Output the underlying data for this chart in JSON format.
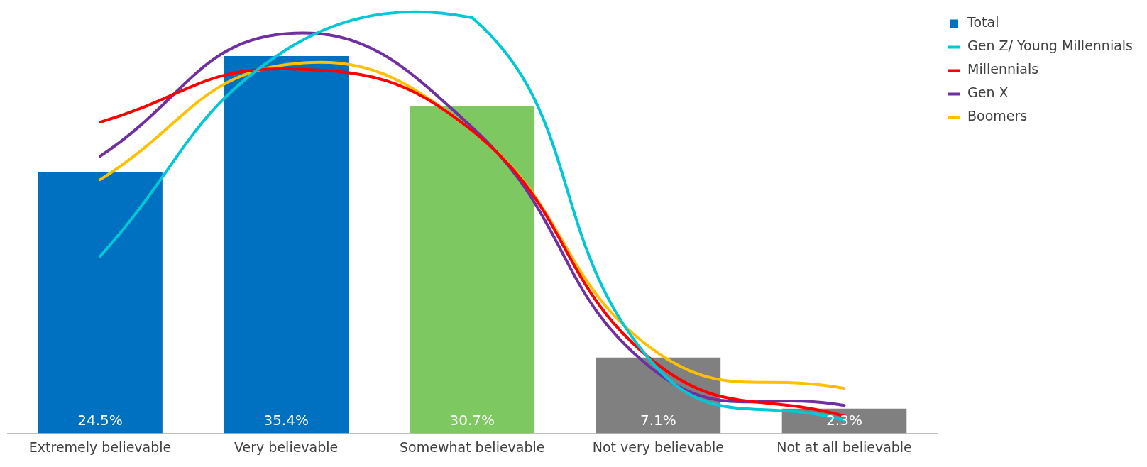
{
  "chart_data": {
    "type": "bar",
    "categories": [
      "Extremely believable",
      "Very believable",
      "Somewhat believable",
      "Not very believable",
      "Not at all believable"
    ],
    "legend": "top right",
    "grid": false,
    "series": [
      {
        "name": "Total",
        "colors": [
          "#0070c0",
          "#0070c0",
          "#7ec862",
          "#808080",
          "#808080"
        ],
        "values": [
          24.5,
          35.4,
          30.7,
          7.1,
          2.3
        ],
        "value_labels": [
          "24.5%",
          "35.4%",
          "30.7%",
          "7.1%",
          "2.3%"
        ]
      },
      {
        "name": "Gen Z/ Young Millennials",
        "type": "line",
        "color": "#00c8d7",
        "values": [
          16.6,
          36.0,
          39.0,
          6.0,
          1.2
        ]
      },
      {
        "name": "Millennials",
        "type": "line",
        "color": "#ff0000",
        "values": [
          29.2,
          34.2,
          28.4,
          6.4,
          1.6
        ]
      },
      {
        "name": "Gen X",
        "type": "line",
        "color": "#7030a0",
        "values": [
          26.0,
          37.5,
          28.7,
          5.6,
          2.6
        ]
      },
      {
        "name": "Boomers",
        "type": "line",
        "color": "#ffc000",
        "values": [
          23.8,
          34.6,
          28.4,
          7.5,
          4.2
        ]
      }
    ]
  }
}
